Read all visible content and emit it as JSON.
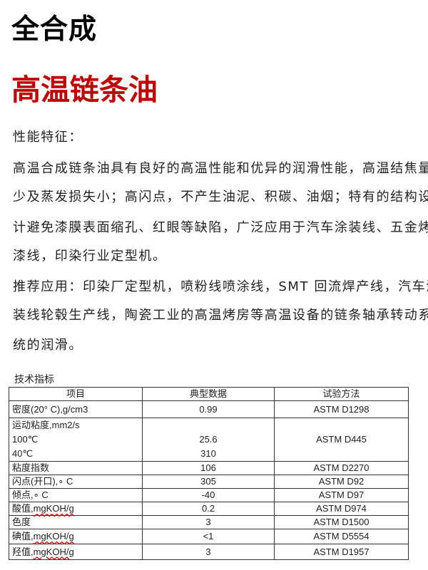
{
  "title": "全合成",
  "product_name": "高温链条油",
  "features_heading": "性能特征：",
  "features_lines": [
    "高温合成链条油具有良好的高温性能和优异的润滑性能，高温结焦量",
    "少及蒸发损失小；高闪点，不产生油泥、积碳、油烟；特有的结构设",
    "计避免漆膜表面缩孔、红眼等缺陷，广泛应用于汽车涂装线、五金烤",
    "漆线，印染行业定型机。"
  ],
  "application_lines": [
    "推荐应用：印染厂定型机，喷粉线喷涂线，SMT 回流焊产线，汽车涂",
    "装线轮毂生产线，陶瓷工业的高温烤房等高温设备的链条轴承转动系",
    "统的润滑。"
  ],
  "specs": {
    "caption": "技术指标",
    "headers": [
      "项目",
      "典型数据",
      "试验方法"
    ],
    "viscosity": {
      "item": "运动粘度,mm2/s",
      "sub1": "100℃",
      "sub2": "40℃",
      "val1": "25.6",
      "val2": "310",
      "method": "ASTM D445"
    },
    "rows": [
      {
        "item": "密度(20° C),g/cm3",
        "value": "0.99",
        "method": "ASTM D1298"
      },
      {
        "item": "粘度指数",
        "value": "106",
        "method": "ASTM D2270"
      },
      {
        "item": "闪点(开口),∘ C",
        "value": "305",
        "method": "ASTM D92"
      },
      {
        "item": "倾点,∘ C",
        "value": "-40",
        "method": "ASTM D97"
      },
      {
        "item_cn": "酸值,",
        "item_unit": "mgKOH/g",
        "value": "0.2",
        "method": "ASTM D974"
      },
      {
        "item": "色度",
        "value": "3",
        "method": "ASTM D1500"
      },
      {
        "item_cn": "碘值,",
        "item_unit": "mgKOH/g",
        "value": "<1",
        "method": "ASTM D5554"
      },
      {
        "item_cn": "羟值,",
        "item_unit": "mgKOH/g",
        "value": "3",
        "method": "ASTM D1957"
      }
    ]
  },
  "colors": {
    "title": "#000000",
    "product": "#c00000",
    "text": "#222222"
  }
}
